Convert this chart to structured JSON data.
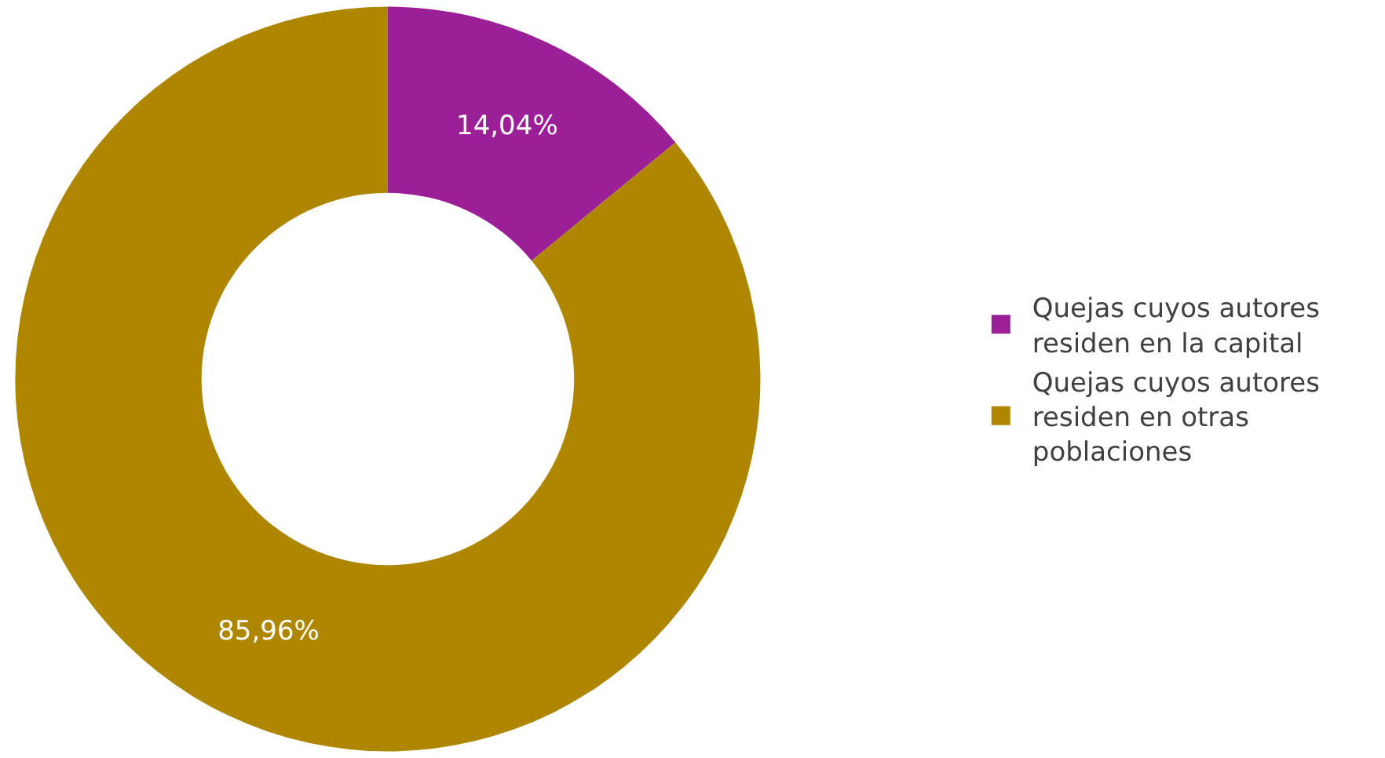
{
  "chart_data": {
    "type": "donut",
    "categories": [
      "Quejas cuyos autores residen en la capital",
      "Quejas cuyos autores residen en otras poblaciones"
    ],
    "values": [
      14.04,
      85.96
    ],
    "colors": [
      "#9b1f97",
      "#ae8600"
    ],
    "value_labels": [
      "14,04%",
      "85,96%"
    ],
    "legend": "right"
  }
}
